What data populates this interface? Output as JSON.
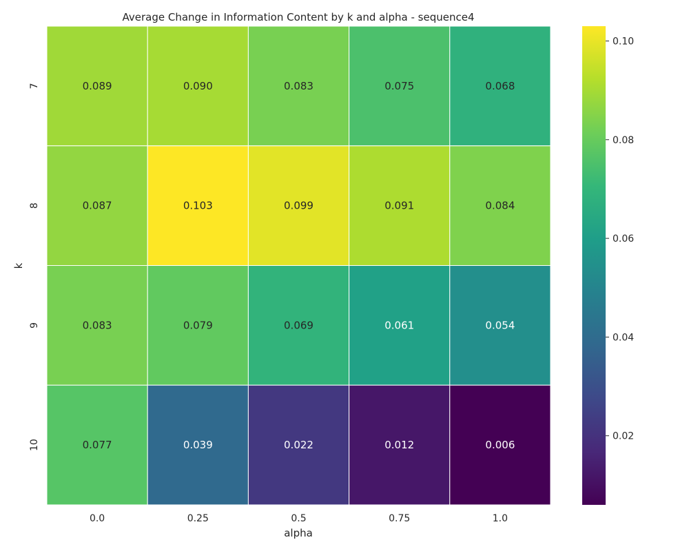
{
  "chart_data": {
    "type": "heatmap",
    "title": "Average Change in Information Content by k and alpha - sequence4",
    "xlabel": "alpha",
    "ylabel": "k",
    "x_categories": [
      "0.0",
      "0.25",
      "0.5",
      "0.75",
      "1.0"
    ],
    "y_categories": [
      "7",
      "8",
      "9",
      "10"
    ],
    "values": [
      [
        0.089,
        0.09,
        0.083,
        0.075,
        0.068
      ],
      [
        0.087,
        0.103,
        0.099,
        0.091,
        0.084
      ],
      [
        0.083,
        0.079,
        0.069,
        0.061,
        0.054
      ],
      [
        0.077,
        0.039,
        0.022,
        0.012,
        0.006
      ]
    ],
    "value_labels": [
      [
        "0.089",
        "0.090",
        "0.083",
        "0.075",
        "0.068"
      ],
      [
        "0.087",
        "0.103",
        "0.099",
        "0.091",
        "0.084"
      ],
      [
        "0.083",
        "0.079",
        "0.069",
        "0.061",
        "0.054"
      ],
      [
        "0.077",
        "0.039",
        "0.022",
        "0.012",
        "0.006"
      ]
    ],
    "colormap": "viridis",
    "colorbar": {
      "range": [
        0.006,
        0.103
      ],
      "ticks": [
        0.02,
        0.04,
        0.06,
        0.08,
        0.1
      ],
      "tick_labels": [
        "0.02",
        "0.04",
        "0.06",
        "0.08",
        "0.10"
      ]
    },
    "grid": false
  }
}
